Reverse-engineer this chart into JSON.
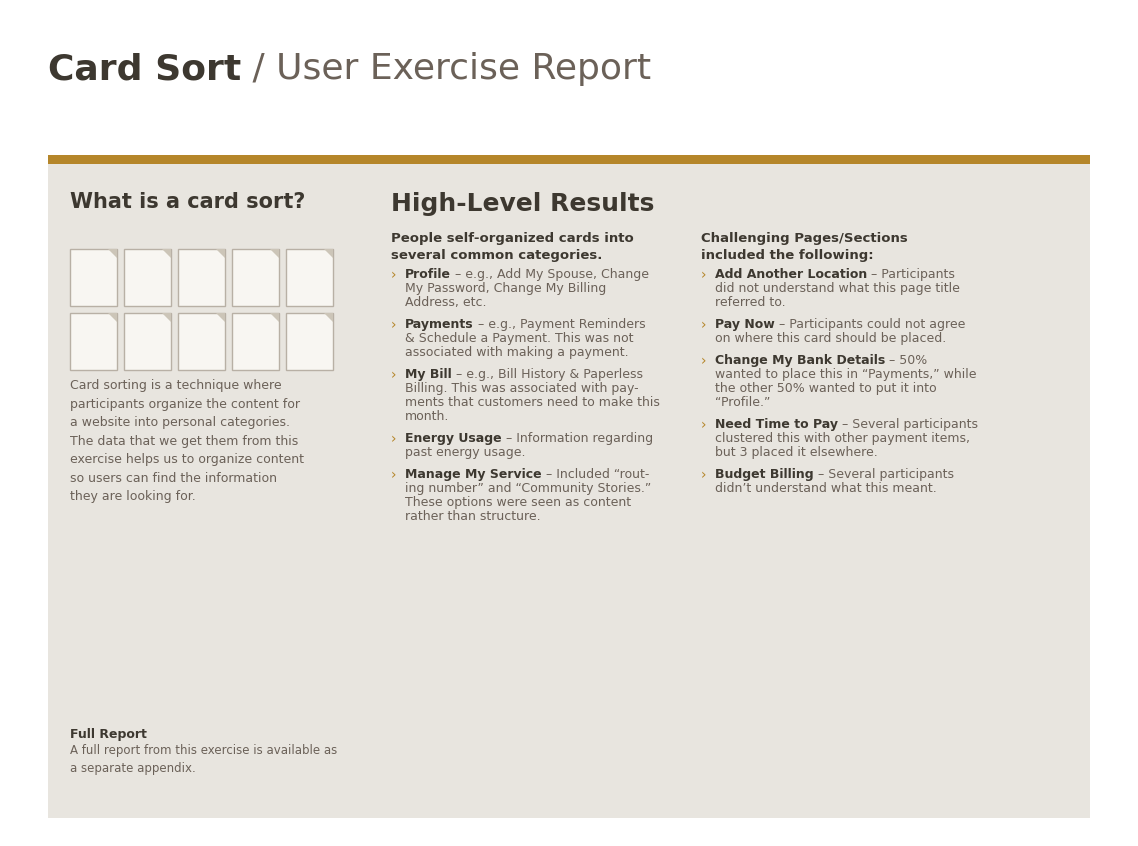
{
  "title_bold": "Card Sort",
  "title_regular": " / User Exercise Report",
  "bg_color": "#ffffff",
  "panel_color": "#e8e5df",
  "bar_color": "#b5862a",
  "text_dark": "#3d3830",
  "text_medium": "#6b6158",
  "text_light": "#8a7e75",
  "arrow_color": "#b5862a",
  "left_section_title": "What is a card sort?",
  "left_description": "Card sorting is a technique where\nparticipants organize the content for\na website into personal categories.\nThe data that we get them from this\nexercise helps us to organize content\nso users can find the information\nthey are looking for.",
  "full_report_title": "Full Report",
  "full_report_text": "A full report from this exercise is available as\na separate appendix.",
  "right_section_title": "High-Level Results",
  "col1_subtitle": "People self-organized cards into\nseveral common categories.",
  "col1_items": [
    {
      "bold": "Profile",
      "rest": " – e.g., Add My Spouse, Change\nMy Password, Change My Billing\nAddress, etc.",
      "nlines": 3
    },
    {
      "bold": "Payments",
      "rest": " – e.g., Payment Reminders\n& Schedule a Payment. This was not\nassociated with making a payment.",
      "nlines": 3
    },
    {
      "bold": "My Bill",
      "rest": " – e.g., Bill History & Paperless\nBilling. This was associated with pay-\nments that customers need to make this\nmonth.",
      "nlines": 4
    },
    {
      "bold": "Energy Usage",
      "rest": " – Information regarding\npast energy usage.",
      "nlines": 2
    },
    {
      "bold": "Manage My Service",
      "rest": " – Included “rout-\ning number” and “Community Stories.”\nThese options were seen as content\nrather than structure.",
      "nlines": 4
    }
  ],
  "col2_subtitle": "Challenging Pages/Sections\nincluded the following:",
  "col2_items": [
    {
      "bold": "Add Another Location",
      "rest": " – Participants\ndid not understand what this page title\nreferred to.",
      "nlines": 3
    },
    {
      "bold": "Pay Now",
      "rest": " – Participants could not agree\non where this card should be placed.",
      "nlines": 2
    },
    {
      "bold": "Change My Bank Details",
      "rest": " – 50%\nwanted to place this in “Payments,” while\nthe other 50% wanted to put it into\n“Profile.”",
      "nlines": 4
    },
    {
      "bold": "Need Time to Pay",
      "rest": " – Several participants\nclustered this with other payment items,\nbut 3 placed it elsewhere.",
      "nlines": 3
    },
    {
      "bold": "Budget Billing",
      "rest": " – Several participants\ndidn’t understand what this meant.",
      "nlines": 2
    }
  ]
}
